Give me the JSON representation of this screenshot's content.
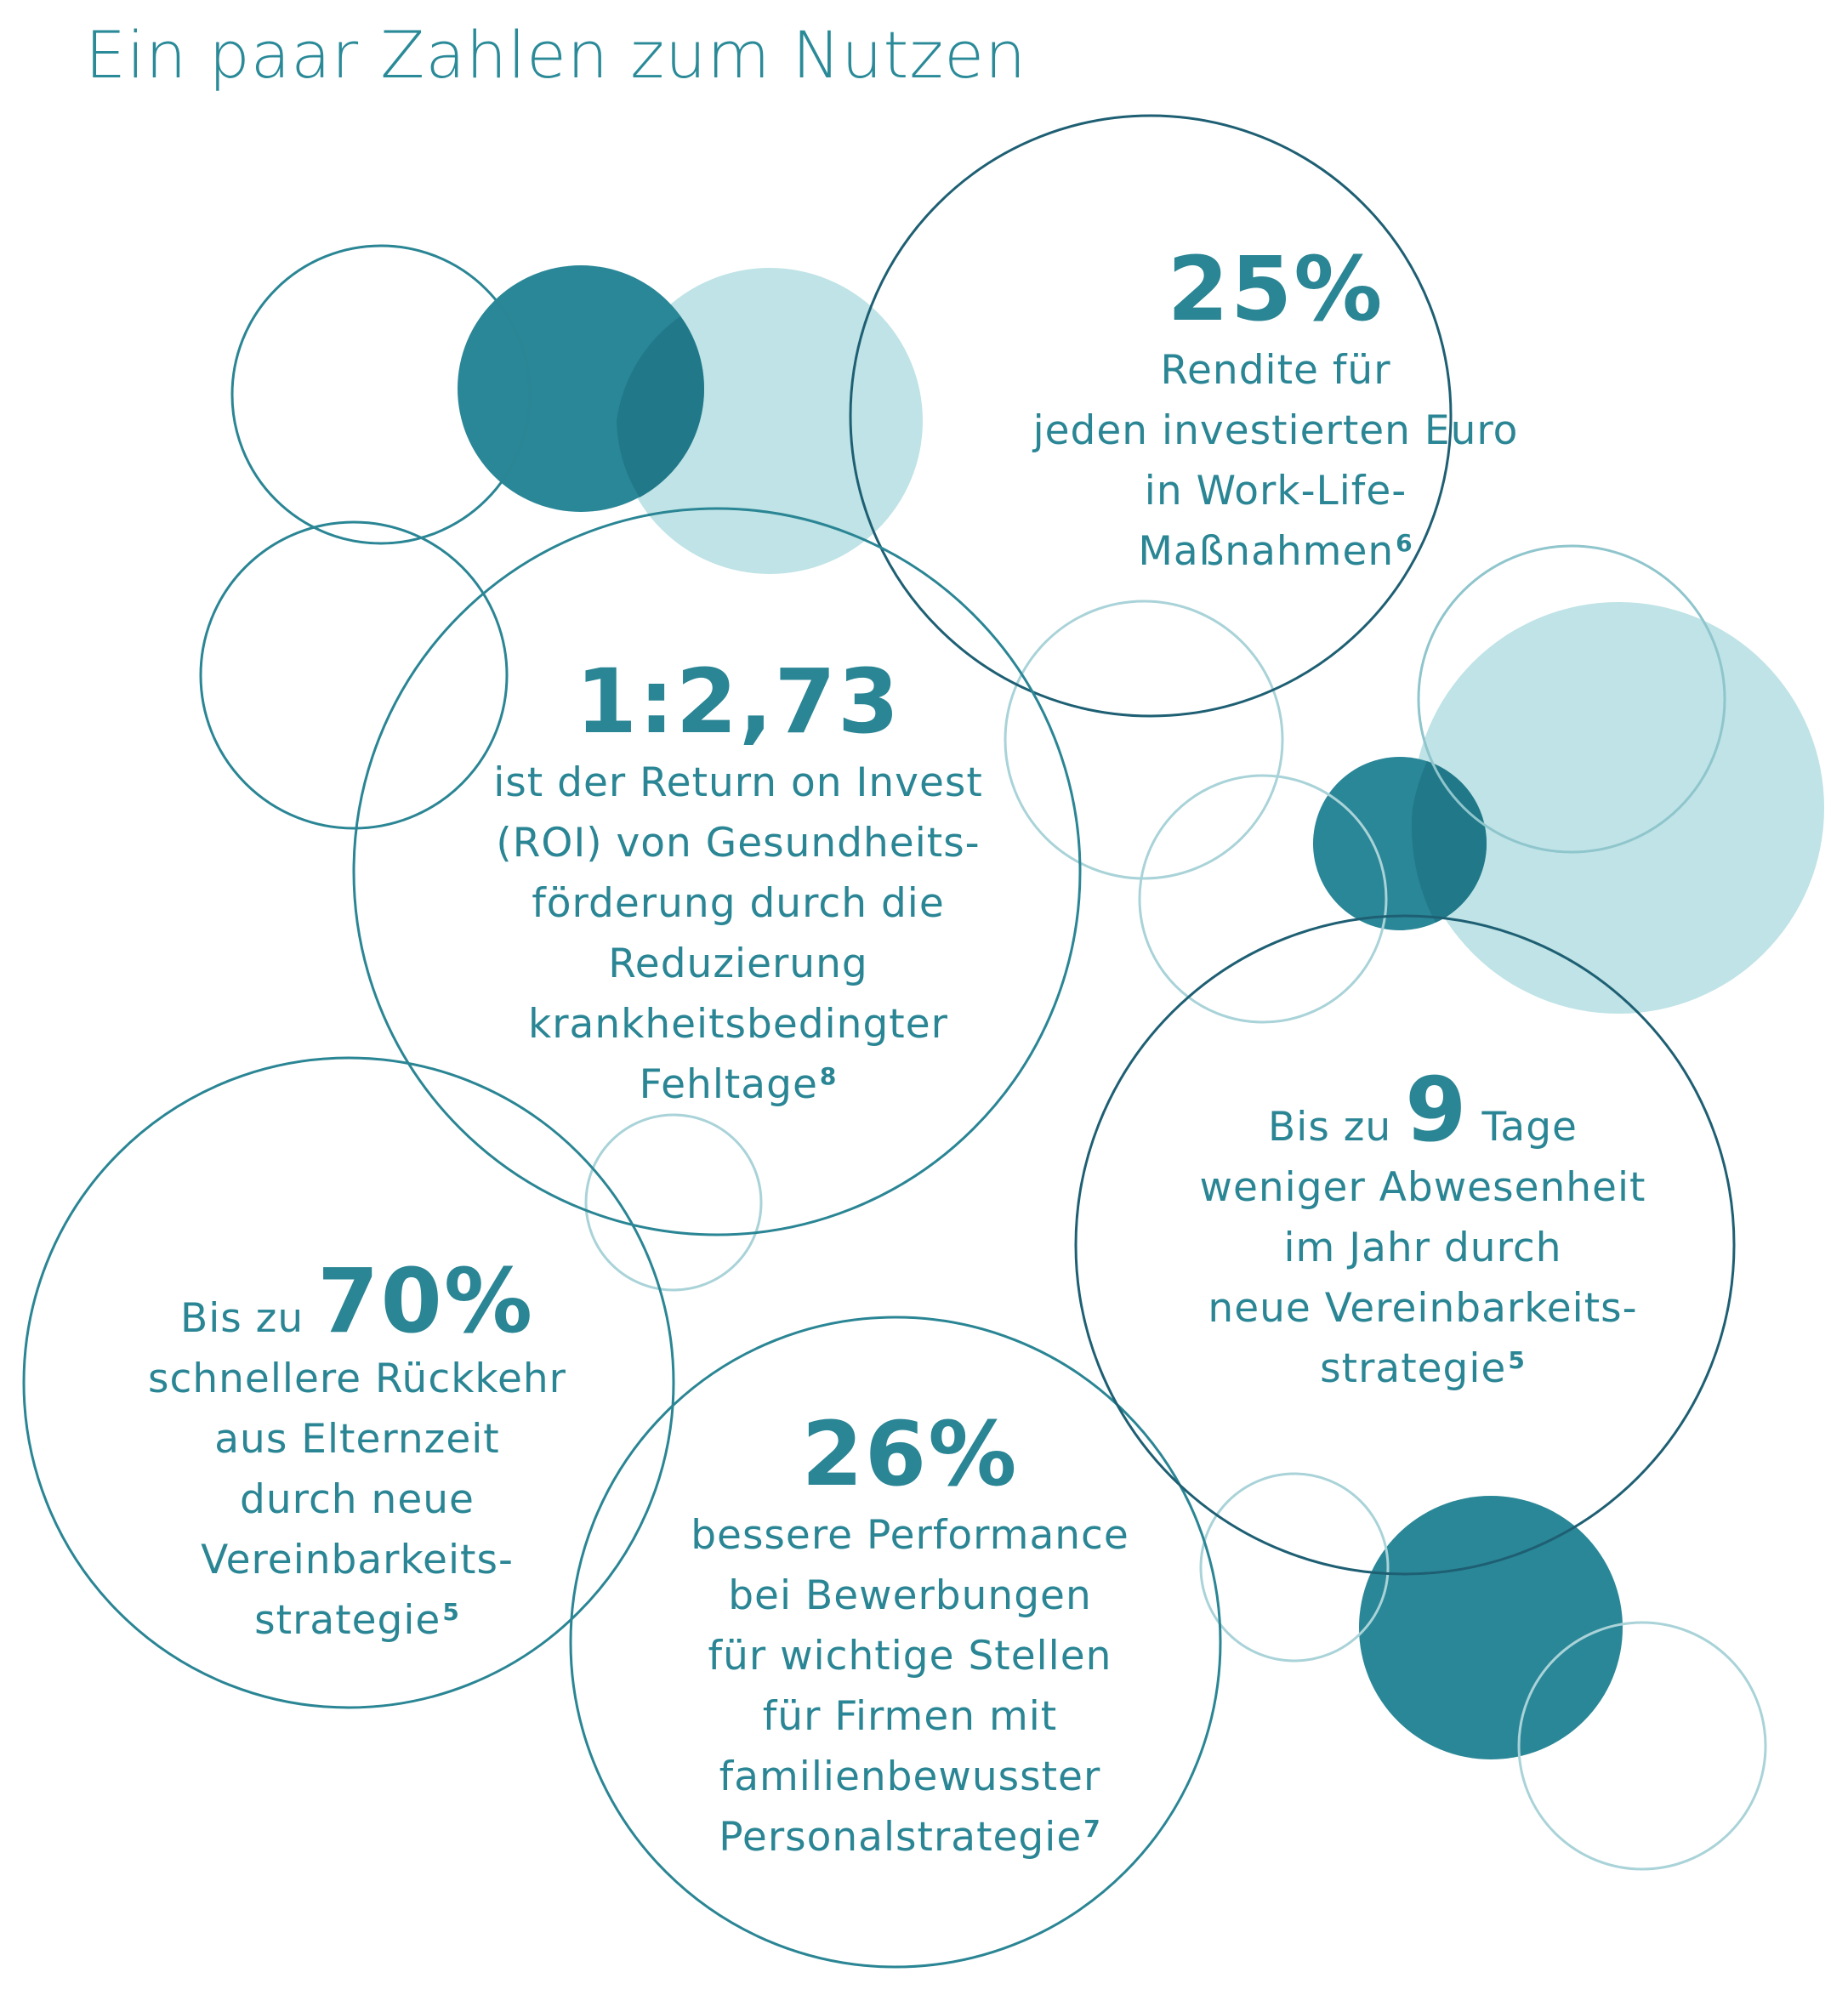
{
  "page": {
    "title": "Ein paar Zahlen zum Nutzen"
  },
  "colors": {
    "teal_dark": "#1e5f73",
    "teal": "#2a8594",
    "teal_fill": "#2a8797",
    "teal_light": "#bfe3e6",
    "teal_pale_outline": "#a9d3d8"
  },
  "stats": {
    "roi_return": {
      "value": "25%",
      "lines": [
        "Rendite für",
        "jeden investierten Euro",
        "in Work-Life-"
      ],
      "last_line": "Maßnahmen",
      "footnote": "6"
    },
    "roi_health": {
      "value": "1:2,73",
      "lines": [
        "ist der Return on Invest",
        "(ROI) von Gesundheits-",
        "förderung durch die",
        "Reduzierung",
        "krankheitsbedingter"
      ],
      "last_line": "Fehltage",
      "footnote": "8"
    },
    "absence_days": {
      "prefix": "Bis zu",
      "value": "9",
      "suffix": "Tage",
      "lines": [
        "weniger Abwesenheit",
        "im Jahr durch",
        "neue Vereinbarkeits-"
      ],
      "last_line": "strategie",
      "footnote": "5"
    },
    "parental_leave": {
      "prefix": "Bis zu",
      "value": "70%",
      "lines": [
        "schnellere Rückkehr",
        "aus Elternzeit",
        "durch neue",
        "Vereinbarkeits-"
      ],
      "last_line": "strategie",
      "footnote": "5"
    },
    "performance": {
      "value": "26%",
      "lines": [
        "bessere Performance",
        "bei Bewerbungen",
        "für wichtige Stellen",
        "für Firmen mit",
        "familienbewusster"
      ],
      "last_line": "Personalstrategie",
      "footnote": "7"
    }
  }
}
